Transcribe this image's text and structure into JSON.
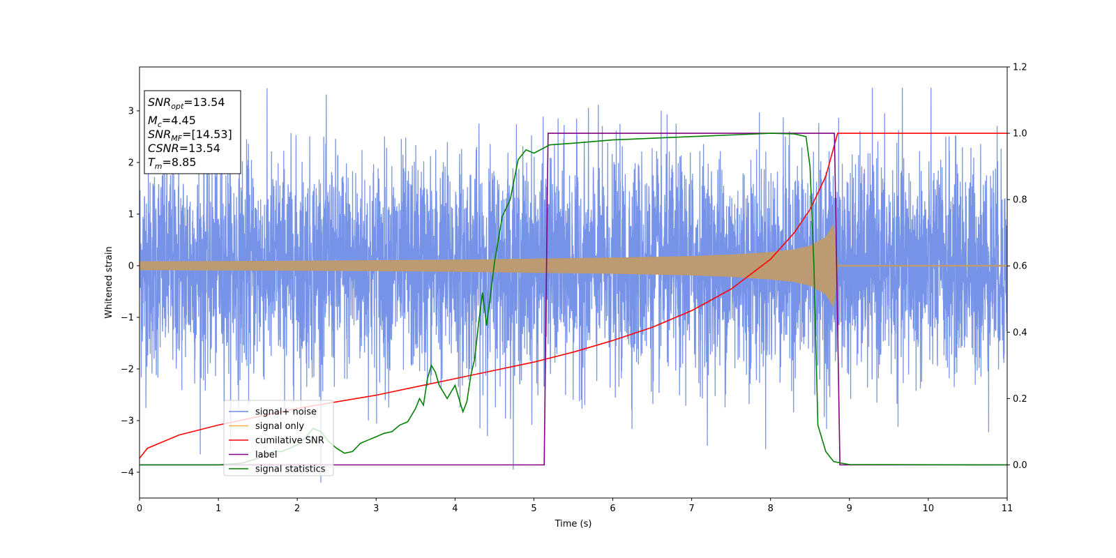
{
  "chart_data": {
    "type": "line",
    "xlabel": "Time (s)",
    "ylabel": "Whitened strain",
    "xlim": [
      0,
      11
    ],
    "ylim_left": [
      -4.5,
      3.85
    ],
    "ylim_right": [
      -0.1,
      1.2
    ],
    "x_ticks": [
      "0",
      "1",
      "2",
      "3",
      "4",
      "5",
      "6",
      "7",
      "8",
      "9",
      "10",
      "11"
    ],
    "y_left_ticks": [
      "−4",
      "−3",
      "−2",
      "−1",
      "0",
      "1",
      "2",
      "3"
    ],
    "y_right_ticks": [
      "0.0",
      "0.2",
      "0.4",
      "0.6",
      "0.8",
      "1.0",
      "1.2"
    ],
    "grid": false,
    "legend_position": "lower-left",
    "annotation": {
      "snr_opt": {
        "main": "SNR",
        "sub": "opt",
        "value": "=13.54"
      },
      "mc": {
        "main": "M",
        "sub": "c",
        "value": "=4.45"
      },
      "snr_mf": {
        "main": "SNR",
        "sub": "MF",
        "value": "=[14.53]"
      },
      "csnr": {
        "main": "CSNR",
        "value": "=13.54"
      },
      "tm": {
        "main": "T",
        "sub": "m",
        "value": "=8.85"
      }
    },
    "series": [
      {
        "name": "signal+ noise",
        "color": "#6b8ae6",
        "axis": "left",
        "description_values": {
          "amplitude_typical": 1.5,
          "peak_max": 3.5,
          "peak_min": -4.2
        }
      },
      {
        "name": "signal only",
        "color": "#f5b041",
        "axis": "left",
        "envelope": {
          "x": [
            0,
            1,
            2,
            3,
            4,
            5,
            6,
            7,
            7.5,
            8,
            8.3,
            8.5,
            8.7,
            8.8,
            8.85,
            8.9,
            11
          ],
          "y": [
            0.08,
            0.085,
            0.09,
            0.1,
            0.11,
            0.13,
            0.15,
            0.18,
            0.21,
            0.26,
            0.31,
            0.38,
            0.55,
            0.8,
            0.02,
            0.01,
            0.01
          ]
        }
      },
      {
        "name": "cumilative SNR",
        "color": "#ff0000",
        "axis": "right",
        "x": [
          0,
          0.1,
          0.5,
          1,
          1.5,
          2,
          2.5,
          3,
          3.5,
          4,
          4.5,
          5,
          5.5,
          6,
          6.5,
          7,
          7.5,
          8,
          8.3,
          8.5,
          8.7,
          8.85,
          9,
          11
        ],
        "y": [
          0.02,
          0.05,
          0.09,
          0.12,
          0.145,
          0.17,
          0.19,
          0.21,
          0.235,
          0.26,
          0.285,
          0.31,
          0.34,
          0.375,
          0.415,
          0.465,
          0.53,
          0.62,
          0.7,
          0.77,
          0.87,
          1.0,
          1.0,
          1.0
        ]
      },
      {
        "name": "label",
        "color": "#800080",
        "axis": "right",
        "x": [
          0,
          5.13,
          5.18,
          8.81,
          8.88,
          11
        ],
        "y": [
          0,
          0,
          1.0,
          1.0,
          0,
          0
        ]
      },
      {
        "name": "signal statistics",
        "color": "#008000",
        "axis": "right",
        "x": [
          0,
          1.0,
          1.3,
          1.5,
          1.7,
          1.8,
          1.9,
          2.0,
          2.1,
          2.2,
          2.3,
          2.4,
          2.5,
          2.6,
          2.7,
          2.8,
          2.85,
          2.9,
          3.0,
          3.1,
          3.2,
          3.3,
          3.4,
          3.5,
          3.55,
          3.6,
          3.65,
          3.7,
          3.75,
          3.8,
          3.9,
          4.0,
          4.05,
          4.1,
          4.15,
          4.2,
          4.25,
          4.3,
          4.35,
          4.4,
          4.5,
          4.6,
          4.7,
          4.8,
          4.9,
          5.0,
          5.2,
          5.5,
          6.0,
          6.5,
          7.0,
          7.5,
          8.0,
          8.3,
          8.45,
          8.5,
          8.55,
          8.6,
          8.7,
          8.8,
          8.9,
          9.0,
          11
        ],
        "y": [
          0,
          0,
          0.005,
          0.02,
          0.04,
          0.04,
          0.05,
          0.06,
          0.08,
          0.11,
          0.1,
          0.07,
          0.05,
          0.035,
          0.04,
          0.065,
          0.07,
          0.075,
          0.085,
          0.095,
          0.1,
          0.12,
          0.13,
          0.17,
          0.2,
          0.18,
          0.26,
          0.3,
          0.28,
          0.24,
          0.2,
          0.24,
          0.2,
          0.16,
          0.19,
          0.27,
          0.32,
          0.43,
          0.52,
          0.42,
          0.61,
          0.75,
          0.8,
          0.92,
          0.95,
          0.94,
          0.965,
          0.97,
          0.98,
          0.985,
          0.99,
          0.995,
          1.0,
          0.998,
          0.99,
          0.9,
          0.6,
          0.12,
          0.04,
          0.01,
          0.005,
          0.001,
          0.0
        ]
      }
    ]
  }
}
